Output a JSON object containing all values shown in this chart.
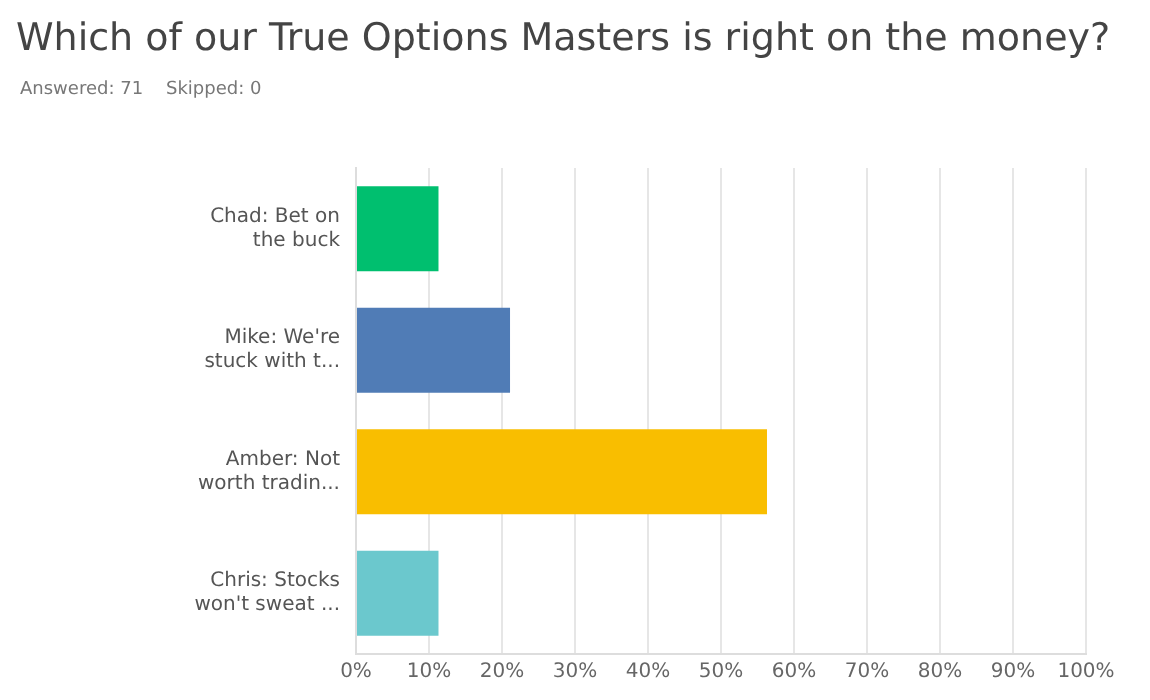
{
  "chart_data": {
    "type": "bar",
    "orientation": "horizontal",
    "title": "Which of our True Options Masters is right on the money?",
    "subtitle": "Answered: 71    Skipped: 0",
    "categories": [
      "Chad: Bet on the buck",
      "Mike: We're stuck with t...",
      "Amber: Not worth tradin...",
      "Chris: Stocks won't sweat ..."
    ],
    "values": [
      11.3,
      21.1,
      56.3,
      11.3
    ],
    "colors": [
      "#00bf6f",
      "#507cb6",
      "#f9be00",
      "#6bc8cd"
    ],
    "xlim": [
      0,
      100
    ],
    "xticks": [
      {
        "value": 0,
        "label": "0%"
      },
      {
        "value": 10,
        "label": "10%"
      },
      {
        "value": 20,
        "label": "20%"
      },
      {
        "value": 30,
        "label": "30%"
      },
      {
        "value": 40,
        "label": "40%"
      },
      {
        "value": 50,
        "label": "50%"
      },
      {
        "value": 60,
        "label": "60%"
      },
      {
        "value": 70,
        "label": "70%"
      },
      {
        "value": 80,
        "label": "80%"
      },
      {
        "value": 90,
        "label": "90%"
      },
      {
        "value": 100,
        "label": "100%"
      }
    ],
    "grid": "x",
    "legend": false
  }
}
